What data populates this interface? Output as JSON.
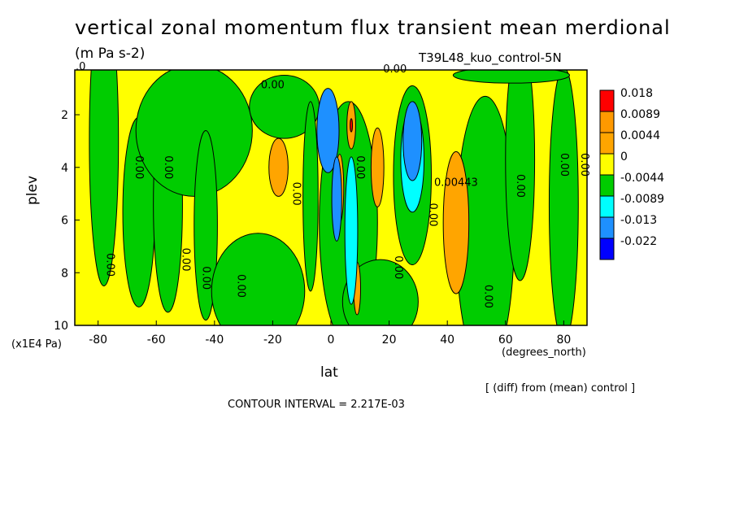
{
  "chart_data": {
    "type": "heatmap",
    "title": "vertical zonal momentum flux transient mean merdional",
    "subtitle": "(m Pa s-2)",
    "run_label": "T39L48_kuo_control-5N",
    "xlabel": "lat",
    "xunit": "(degrees_north)",
    "ylabel": "plev",
    "yunit": "(x1E4 Pa)",
    "xlim": [
      -88,
      88
    ],
    "ylim": [
      10,
      0.3
    ],
    "x_ticks": [
      -80,
      -60,
      -40,
      -20,
      0,
      20,
      40,
      60,
      80
    ],
    "y_ticks": [
      2,
      4,
      6,
      8,
      10
    ],
    "contour_interval": "CONTOUR INTERVAL = 2.217E-03",
    "note": "[ (diff) from (mean) control ]",
    "colorbar": {
      "levels": [
        "0.018",
        "0.0089",
        "0.0044",
        "0",
        "-0.0044",
        "-0.0089",
        "-0.013",
        "-0.022"
      ],
      "colors": [
        "#ff0000",
        "#ff9900",
        "#ffa500",
        "#ffff00",
        "#00cc00",
        "#00ffff",
        "#1e90ff",
        "#0000ff"
      ]
    },
    "colors": {
      "strong_positive": "#ff0000",
      "positive": "#ffa500",
      "near_zero": "#ffff00",
      "negative": "#00cc00",
      "moderate_negative": "#00ffff",
      "strong_negative": "#1e90ff"
    },
    "contour_labels": [
      {
        "lat": -86,
        "plev": 0.3,
        "text": ".0"
      },
      {
        "lat": -20,
        "plev": 1.0,
        "text": "0.00"
      },
      {
        "lat": 22,
        "plev": 0.4,
        "text": "0.00"
      },
      {
        "lat": -67,
        "plev": 4.0,
        "text": "0.00"
      },
      {
        "lat": -57,
        "plev": 4.0,
        "text": "0.00"
      },
      {
        "lat": -77,
        "plev": 7.7,
        "text": "0.00"
      },
      {
        "lat": -51,
        "plev": 7.5,
        "text": "0.00"
      },
      {
        "lat": -44,
        "plev": 8.2,
        "text": "0.00"
      },
      {
        "lat": -32,
        "plev": 8.5,
        "text": "0.00"
      },
      {
        "lat": -13,
        "plev": 5.0,
        "text": "0.00"
      },
      {
        "lat": 9,
        "plev": 4.0,
        "text": "0.00"
      },
      {
        "lat": 34,
        "plev": 5.8,
        "text": "0.00"
      },
      {
        "lat": 22,
        "plev": 7.8,
        "text": "0.00"
      },
      {
        "lat": 43,
        "plev": 4.7,
        "text": "0.00443"
      },
      {
        "lat": 53,
        "plev": 8.9,
        "text": "0.00"
      },
      {
        "lat": 64,
        "plev": 4.7,
        "text": "0.00"
      },
      {
        "lat": 79,
        "plev": 3.9,
        "text": "0.00"
      },
      {
        "lat": 86,
        "plev": 3.9,
        "text": "0.00"
      }
    ],
    "regions": [
      {
        "level": "negative",
        "shape": "ellipse",
        "lat": -78,
        "plev": 3.0,
        "rx": 5,
        "ry": 5.5
      },
      {
        "level": "negative",
        "shape": "ellipse",
        "lat": -66,
        "plev": 5.7,
        "rx": 5.5,
        "ry": 3.6
      },
      {
        "level": "negative",
        "shape": "ellipse",
        "lat": -56,
        "plev": 5.4,
        "rx": 5,
        "ry": 4.1
      },
      {
        "level": "negative",
        "shape": "ellipse",
        "lat": -47,
        "plev": 2.6,
        "rx": 20,
        "ry": 2.5
      },
      {
        "level": "negative",
        "shape": "ellipse",
        "lat": -43,
        "plev": 6.2,
        "rx": 4,
        "ry": 3.6
      },
      {
        "level": "negative",
        "shape": "ellipse",
        "lat": -25,
        "plev": 8.7,
        "rx": 16,
        "ry": 2.2
      },
      {
        "level": "negative",
        "shape": "ellipse",
        "lat": -16,
        "plev": 1.7,
        "rx": 12,
        "ry": 1.2
      },
      {
        "level": "negative",
        "shape": "ellipse",
        "lat": -7,
        "plev": 5.1,
        "rx": 2.6,
        "ry": 3.6
      },
      {
        "level": "negative",
        "shape": "ellipse",
        "lat": 6,
        "plev": 6.1,
        "rx": 10,
        "ry": 4.6
      },
      {
        "level": "negative",
        "shape": "ellipse",
        "lat": 28,
        "plev": 4.3,
        "rx": 6.5,
        "ry": 3.4
      },
      {
        "level": "negative",
        "shape": "ellipse",
        "lat": 17,
        "plev": 9.1,
        "rx": 13,
        "ry": 1.6
      },
      {
        "level": "negative",
        "shape": "ellipse",
        "lat": 53,
        "plev": 6.5,
        "rx": 10,
        "ry": 5.2
      },
      {
        "level": "negative",
        "shape": "ellipse",
        "lat": 65,
        "plev": 3.7,
        "rx": 5,
        "ry": 4.6
      },
      {
        "level": "negative",
        "shape": "ellipse",
        "lat": 80,
        "plev": 5.4,
        "rx": 5,
        "ry": 5.2
      },
      {
        "level": "negative",
        "shape": "ellipse",
        "lat": 62,
        "plev": 0.5,
        "rx": 20,
        "ry": 0.3
      },
      {
        "level": "positive",
        "shape": "ellipse",
        "lat": -18,
        "plev": 4.0,
        "rx": 3.3,
        "ry": 1.1
      },
      {
        "level": "positive",
        "shape": "ellipse",
        "lat": 7,
        "plev": 2.4,
        "rx": 1.5,
        "ry": 0.9
      },
      {
        "level": "positive",
        "shape": "ellipse",
        "lat": 3,
        "plev": 4.8,
        "rx": 1.4,
        "ry": 1.3
      },
      {
        "level": "positive",
        "shape": "ellipse",
        "lat": 16,
        "plev": 4.0,
        "rx": 2.2,
        "ry": 1.5
      },
      {
        "level": "positive",
        "shape": "ellipse",
        "lat": 9,
        "plev": 8.6,
        "rx": 1.2,
        "ry": 1.0
      },
      {
        "level": "positive",
        "shape": "ellipse",
        "lat": 43,
        "plev": 6.1,
        "rx": 4.4,
        "ry": 2.7
      },
      {
        "level": "strong_positive",
        "shape": "ellipse",
        "lat": 7,
        "plev": 2.4,
        "rx": 0.4,
        "ry": 0.25
      },
      {
        "level": "moderate_negative",
        "shape": "ellipse",
        "lat": 7,
        "plev": 6.4,
        "rx": 2.2,
        "ry": 2.8
      },
      {
        "level": "moderate_negative",
        "shape": "ellipse",
        "lat": 28,
        "plev": 3.7,
        "rx": 4.0,
        "ry": 2.0
      },
      {
        "level": "strong_negative",
        "shape": "ellipse",
        "lat": -1,
        "plev": 2.6,
        "rx": 3.8,
        "ry": 1.6
      },
      {
        "level": "strong_negative",
        "shape": "ellipse",
        "lat": 2,
        "plev": 5.2,
        "rx": 1.7,
        "ry": 1.6
      },
      {
        "level": "strong_negative",
        "shape": "ellipse",
        "lat": 28,
        "plev": 3.0,
        "rx": 3.2,
        "ry": 1.5
      }
    ]
  }
}
